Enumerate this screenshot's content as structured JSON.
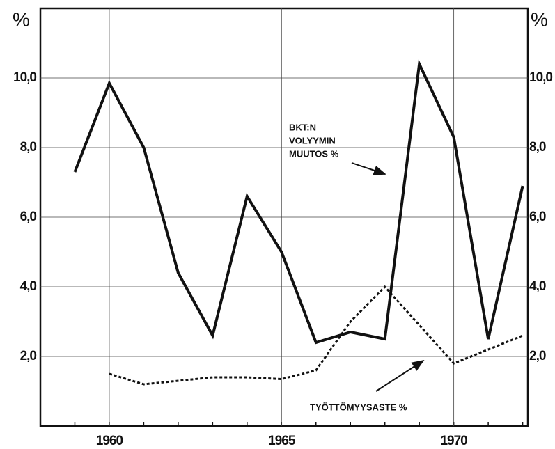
{
  "chart_data": {
    "type": "line",
    "y_label": "%",
    "y2_label": "%",
    "x": [
      1959,
      1960,
      1961,
      1962,
      1963,
      1964,
      1965,
      1966,
      1967,
      1968,
      1969,
      1970,
      1971,
      1972
    ],
    "series": [
      {
        "color": "#111111",
        "style": "solid",
        "values": [
          7.3,
          9.85,
          8.0,
          4.4,
          2.6,
          6.6,
          5.0,
          2.4,
          2.7,
          2.5,
          10.4,
          8.3,
          2.5,
          6.9
        ]
      },
      {
        "color": "#111111",
        "style": "dotted",
        "values": [
          null,
          1.5,
          1.2,
          1.3,
          1.4,
          1.4,
          1.35,
          1.6,
          3.0,
          4.0,
          2.9,
          1.8,
          2.2,
          2.6
        ]
      }
    ],
    "annotations": [
      "BKT:N",
      "VOLYYMIN",
      "MUUTOS %",
      "TYÖTTÖMYYSASTE %"
    ],
    "xlim": [
      1958,
      1972.15
    ],
    "xticks": [
      1960,
      1965,
      1970
    ],
    "ylim": [
      0,
      12
    ],
    "yticks": [
      {
        "value": 2,
        "label": "2,0"
      },
      {
        "value": 4,
        "label": "4,0"
      },
      {
        "value": 6,
        "label": "6,0"
      },
      {
        "value": 8,
        "label": "8,0"
      },
      {
        "value": 10,
        "label": "10,0"
      }
    ],
    "grid": true
  }
}
